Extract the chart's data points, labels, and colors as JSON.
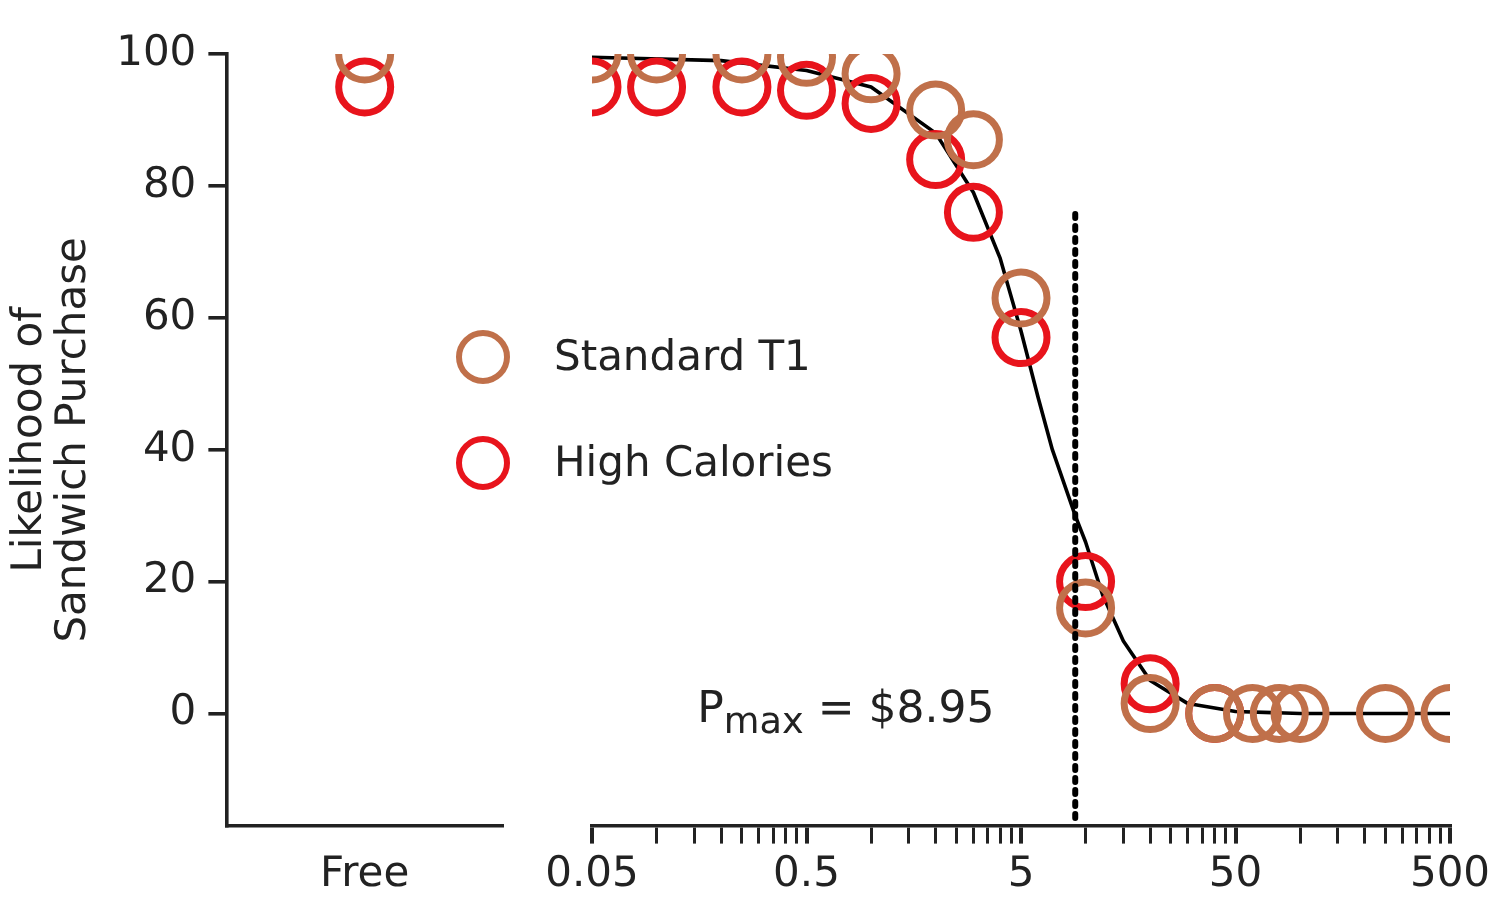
{
  "chart_data": [
    {
      "type": "scatter",
      "categories": [
        "Free"
      ],
      "ylabel": "Likelihood of\nSandwich Purchase",
      "ylim": [
        -17,
        100
      ],
      "yticks": [
        0,
        20,
        40,
        60,
        80,
        100
      ],
      "marker": "circle",
      "grid": false,
      "legend": false,
      "series": [
        {
          "color": "#c0704a",
          "values": [
            100
          ]
        },
        {
          "color": "#e8141c",
          "values": [
            95
          ]
        }
      ]
    },
    {
      "type": "scatter",
      "log": "x",
      "xlim": [
        0.05,
        500
      ],
      "ylim": [
        -17,
        100
      ],
      "tick_labels": "x",
      "marker": "circle",
      "grid": false,
      "legend": "left",
      "xticks": [
        0.05,
        {
          "value": 0.1,
          "label": null
        },
        {
          "value": 0.15,
          "label": null
        },
        {
          "value": 0.2,
          "label": null
        },
        {
          "value": 0.25,
          "label": null
        },
        {
          "value": 0.3,
          "label": null
        },
        {
          "value": 0.35,
          "label": null
        },
        {
          "value": 0.4,
          "label": null
        },
        {
          "value": 0.45,
          "label": null
        },
        0.5,
        {
          "value": 1,
          "label": null
        },
        {
          "value": 1.5,
          "label": null
        },
        {
          "value": 2,
          "label": null
        },
        {
          "value": 2.5,
          "label": null
        },
        {
          "value": 3,
          "label": null
        },
        {
          "value": 3.5,
          "label": null
        },
        {
          "value": 4,
          "label": null
        },
        {
          "value": 4.5,
          "label": null
        },
        5,
        {
          "value": 10,
          "label": null
        },
        {
          "value": 15,
          "label": null
        },
        {
          "value": 20,
          "label": null
        },
        {
          "value": 25,
          "label": null
        },
        {
          "value": 30,
          "label": null
        },
        {
          "value": 35,
          "label": null
        },
        {
          "value": 40,
          "label": null
        },
        {
          "value": 45,
          "label": null
        },
        50,
        {
          "value": 100,
          "label": null
        },
        {
          "value": 150,
          "label": null
        },
        {
          "value": 200,
          "label": null
        },
        {
          "value": 250,
          "label": null
        },
        {
          "value": 300,
          "label": null
        },
        {
          "value": 350,
          "label": null
        },
        {
          "value": 400,
          "label": null
        },
        {
          "value": 450,
          "label": null
        },
        500
      ],
      "ref_lines": [
        {
          "axis": "x",
          "value": 8.95,
          "label": "P$_{max}$ = $8.95",
          "color": "#000000",
          "line_style": "dotted"
        }
      ],
      "series": [
        {
          "name": "Standard T1",
          "color": "#c0704a",
          "x": [
            0.05,
            0.1,
            0.25,
            0.5,
            1,
            2,
            3,
            5,
            10,
            20,
            40,
            60,
            80,
            100,
            250,
            500
          ],
          "values": [
            100,
            100,
            100,
            99.5,
            97,
            91.5,
            87,
            63,
            16,
            1.5,
            0,
            0,
            0,
            0,
            0,
            0
          ]
        },
        {
          "name": "High Calories",
          "color": "#e8141c",
          "x": [
            0.05,
            0.1,
            0.25,
            0.5,
            1,
            2,
            3,
            5,
            10,
            20,
            40
          ],
          "values": [
            95,
            95,
            95,
            94.5,
            92.5,
            84,
            76,
            57,
            20,
            4.5,
            0
          ]
        },
        {
          "type": "line",
          "color": "#000000",
          "marker": "none",
          "x": [
            0.05,
            0.2,
            0.5,
            1,
            2,
            3,
            4,
            5,
            6,
            7,
            8.95,
            10,
            12,
            15,
            20,
            30,
            50,
            100,
            500
          ],
          "values": [
            99.5,
            99,
            97.5,
            95,
            88,
            79,
            69,
            58,
            48,
            40,
            30,
            26,
            18,
            11,
            5,
            1.5,
            0.3,
            0,
            0
          ]
        }
      ]
    }
  ]
}
